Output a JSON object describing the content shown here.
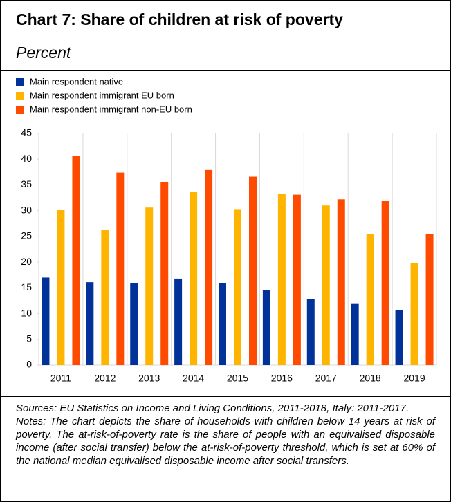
{
  "chart_data": {
    "type": "bar",
    "title": "Chart 7: Share of children at risk of poverty",
    "subtitle": "Percent",
    "categories": [
      "2011",
      "2012",
      "2013",
      "2014",
      "2015",
      "2016",
      "2017",
      "2018",
      "2019"
    ],
    "series": [
      {
        "name": "Main respondent native",
        "color": "#003299",
        "values": [
          17.0,
          16.1,
          15.9,
          16.8,
          15.9,
          14.6,
          12.8,
          12.0,
          10.7
        ]
      },
      {
        "name": "Main respondent immigrant EU born",
        "color": "#FFB400",
        "values": [
          30.2,
          26.3,
          30.6,
          33.6,
          30.3,
          33.3,
          31.0,
          25.4,
          19.8
        ]
      },
      {
        "name": "Main respondent immigrant non-EU born",
        "color": "#FF4B00",
        "values": [
          40.6,
          37.4,
          35.6,
          37.9,
          36.6,
          33.1,
          32.2,
          31.9,
          25.5
        ]
      }
    ],
    "ylim": [
      0,
      45
    ],
    "yticks": [
      0,
      5,
      10,
      15,
      20,
      25,
      30,
      35,
      40,
      45
    ],
    "xgrid": true,
    "sources": "Sources: EU Statistics on Income and Living Conditions, 2011-2018, Italy: 2011-2017.",
    "notes": "Notes: The chart depicts the share of households with children below 14 years at risk of poverty. The at-risk-of-poverty rate is the share of people with an equivalised disposable income (after social transfer) below the at-risk-of-poverty threshold, which is set at 60% of the national median equivalised disposable income after social transfers."
  }
}
